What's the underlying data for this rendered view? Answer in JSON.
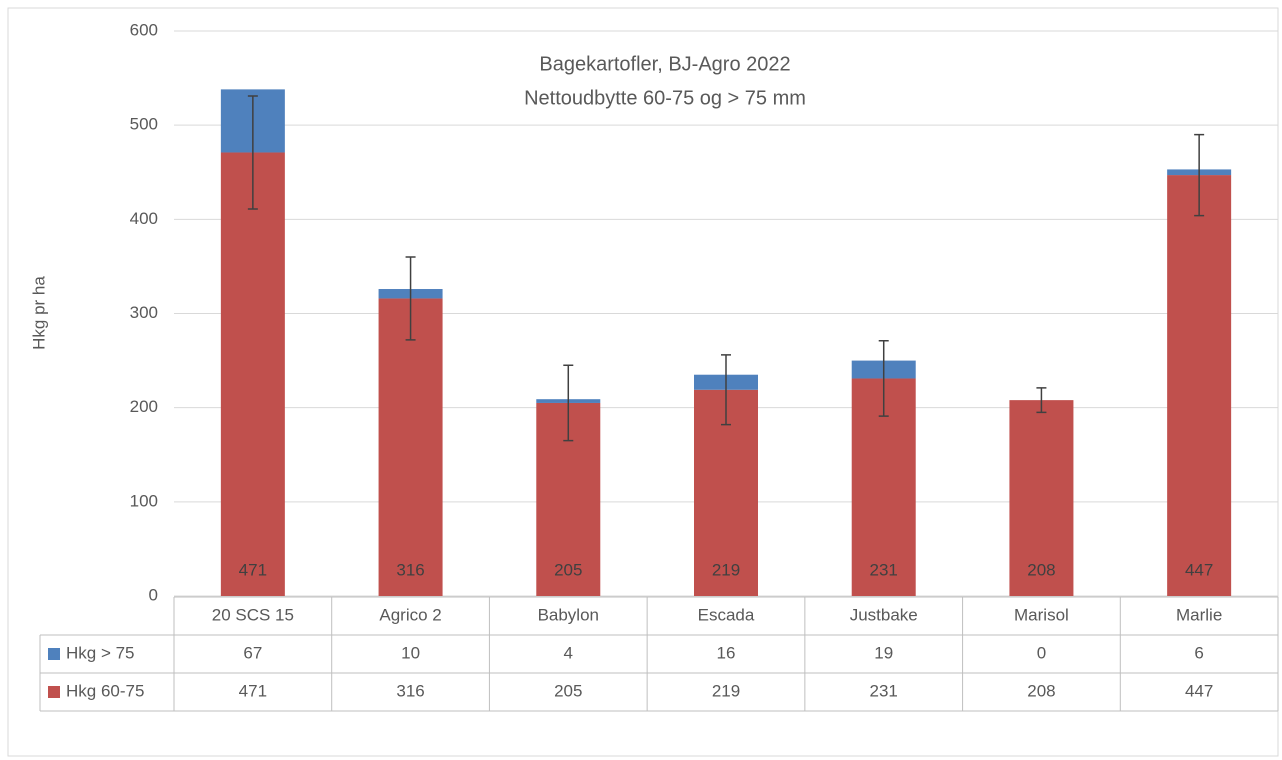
{
  "chart_data": {
    "type": "stacked_bar",
    "title": [
      "Bagekartofler, BJ-Agro 2022",
      "Nettoudbytte 60-75 og > 75 mm"
    ],
    "y_label": "Hkg pr ha",
    "categories": [
      "20 SCS 15",
      "Agrico 2",
      "Babylon",
      "Escada",
      "Justbake",
      "Marisol",
      "Marlie"
    ],
    "series": [
      {
        "name": "Hkg > 75",
        "color": "#4f81bd",
        "values": [
          67,
          10,
          4,
          16,
          19,
          0,
          6
        ]
      },
      {
        "name": "Hkg 60-75",
        "color": "#c0504d",
        "values": [
          471,
          316,
          205,
          219,
          231,
          208,
          447
        ],
        "errors": [
          60,
          44,
          40,
          37,
          40,
          13,
          43
        ]
      }
    ],
    "stack_order": [
      1,
      0
    ],
    "ylim": [
      0,
      600
    ],
    "yticks": [
      0,
      100,
      200,
      300,
      400,
      500,
      600
    ],
    "grid": true,
    "data_table": true
  }
}
